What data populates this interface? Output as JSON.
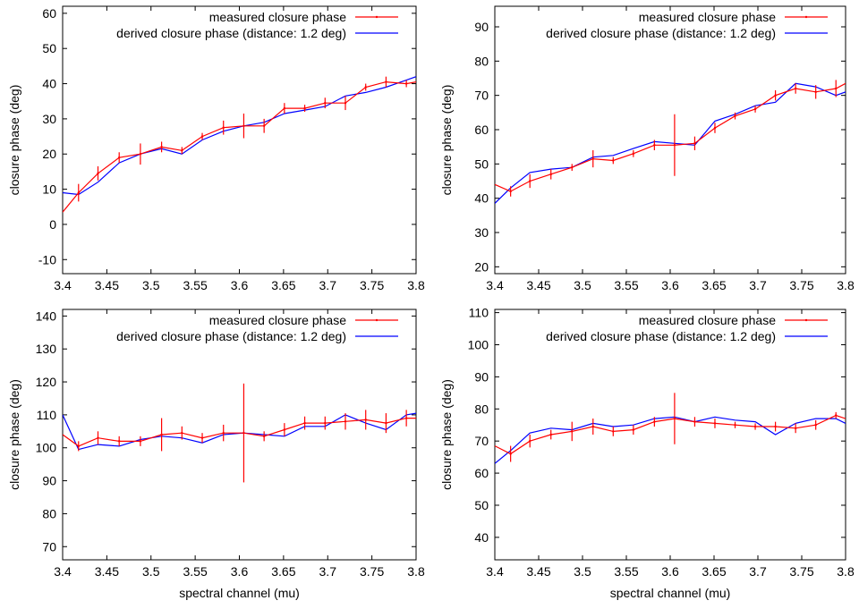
{
  "colors": {
    "measured": "#ff0000",
    "derived": "#0000ff",
    "frame": "#000000"
  },
  "chart_data": [
    {
      "type": "line",
      "ylabel": "closure phase (deg)",
      "xlabel": "",
      "xlim": [
        3.4,
        3.8
      ],
      "ylim": [
        -14,
        62
      ],
      "xticks": [
        "3.4",
        "3.45",
        "3.5",
        "3.55",
        "3.6",
        "3.65",
        "3.7",
        "3.75",
        "3.8"
      ],
      "yticks": [
        "-10",
        "0",
        "10",
        "20",
        "30",
        "40",
        "50",
        "60"
      ],
      "legend_position": "top-right",
      "series": [
        {
          "name": "measured closure phase",
          "x": [
            3.4,
            3.418,
            3.44,
            3.464,
            3.488,
            3.512,
            3.535,
            3.558,
            3.582,
            3.605,
            3.628,
            3.651,
            3.674,
            3.697,
            3.72,
            3.743,
            3.766,
            3.789,
            3.8
          ],
          "y": [
            3.5,
            9,
            14.5,
            19,
            20,
            22,
            21,
            25,
            27.5,
            28,
            28,
            33,
            33,
            34.5,
            34.5,
            39,
            40.5,
            40,
            40.5
          ],
          "err": [
            0,
            2.5,
            2,
            1.5,
            3,
            1.5,
            1,
            1,
            2,
            3.5,
            2,
            1.5,
            1,
            1.5,
            2,
            1,
            1.5,
            1,
            0
          ]
        },
        {
          "name": "derived closure phase (distance: 1.2 deg)",
          "x": [
            3.4,
            3.418,
            3.44,
            3.464,
            3.488,
            3.512,
            3.535,
            3.558,
            3.582,
            3.605,
            3.628,
            3.651,
            3.674,
            3.697,
            3.72,
            3.743,
            3.766,
            3.789,
            3.8
          ],
          "y": [
            9,
            8.5,
            12,
            17.5,
            20,
            21.5,
            20,
            24,
            26.5,
            28,
            29,
            31.5,
            32.5,
            33.5,
            36.5,
            37.5,
            39,
            41,
            42
          ]
        }
      ]
    },
    {
      "type": "line",
      "ylabel": "closure phase (deg)",
      "xlabel": "",
      "xlim": [
        3.4,
        3.8
      ],
      "ylim": [
        18,
        96
      ],
      "xticks": [
        "3.4",
        "3.45",
        "3.5",
        "3.55",
        "3.6",
        "3.65",
        "3.7",
        "3.75",
        "3.8"
      ],
      "yticks": [
        "20",
        "30",
        "40",
        "50",
        "60",
        "70",
        "80",
        "90"
      ],
      "legend_position": "top-right",
      "series": [
        {
          "name": "measured closure phase",
          "x": [
            3.4,
            3.418,
            3.44,
            3.464,
            3.488,
            3.512,
            3.535,
            3.558,
            3.582,
            3.605,
            3.628,
            3.651,
            3.674,
            3.697,
            3.72,
            3.743,
            3.766,
            3.789,
            3.8
          ],
          "y": [
            44,
            42,
            45,
            47,
            49,
            51.5,
            51,
            53,
            55.5,
            55.5,
            56,
            60.5,
            64,
            66,
            70,
            72,
            71,
            72,
            73.5
          ],
          "err": [
            0,
            1.5,
            2,
            1.5,
            1,
            2.5,
            1,
            1,
            1.5,
            9,
            2,
            1.5,
            1,
            1,
            1.5,
            1.5,
            2,
            2.5,
            0
          ]
        },
        {
          "name": "derived closure phase (distance: 1.2 deg)",
          "x": [
            3.4,
            3.418,
            3.44,
            3.464,
            3.488,
            3.512,
            3.535,
            3.558,
            3.582,
            3.605,
            3.628,
            3.651,
            3.674,
            3.697,
            3.72,
            3.743,
            3.766,
            3.789,
            3.8
          ],
          "y": [
            38.5,
            43,
            47.5,
            48.5,
            49,
            52,
            52.5,
            54.5,
            56.5,
            56,
            55.5,
            62.5,
            64.5,
            67,
            68,
            73.5,
            72.5,
            70,
            71
          ]
        }
      ]
    },
    {
      "type": "line",
      "ylabel": "closure phase (deg)",
      "xlabel": "spectral channel (mu)",
      "xlim": [
        3.4,
        3.8
      ],
      "ylim": [
        66,
        142
      ],
      "xticks": [
        "3.4",
        "3.45",
        "3.5",
        "3.55",
        "3.6",
        "3.65",
        "3.7",
        "3.75",
        "3.8"
      ],
      "yticks": [
        "70",
        "80",
        "90",
        "100",
        "110",
        "120",
        "130",
        "140"
      ],
      "legend_position": "top-right",
      "series": [
        {
          "name": "measured closure phase",
          "x": [
            3.4,
            3.418,
            3.44,
            3.464,
            3.488,
            3.512,
            3.535,
            3.558,
            3.582,
            3.605,
            3.628,
            3.651,
            3.674,
            3.697,
            3.72,
            3.743,
            3.766,
            3.789,
            3.8
          ],
          "y": [
            104,
            100.5,
            103,
            102,
            102,
            104,
            104.5,
            103,
            104.5,
            104.5,
            103.5,
            105.5,
            107.5,
            107.5,
            108,
            108.5,
            107.5,
            109,
            109
          ],
          "err": [
            0,
            1.5,
            2,
            1.5,
            1.5,
            5,
            2,
            1.5,
            2.5,
            15,
            1.5,
            2,
            2,
            2,
            2.5,
            3,
            3,
            2.5,
            0
          ]
        },
        {
          "name": "derived closure phase (distance: 1.2 deg)",
          "x": [
            3.4,
            3.418,
            3.44,
            3.464,
            3.488,
            3.512,
            3.535,
            3.558,
            3.582,
            3.605,
            3.628,
            3.651,
            3.674,
            3.697,
            3.72,
            3.743,
            3.766,
            3.789,
            3.8
          ],
          "y": [
            110,
            99.5,
            101,
            100.5,
            102.5,
            103.5,
            103,
            101.5,
            104,
            104.5,
            104,
            103.5,
            106.5,
            106.5,
            110,
            107.5,
            105.5,
            110,
            110.5
          ]
        }
      ]
    },
    {
      "type": "line",
      "ylabel": "closure phase (deg)",
      "xlabel": "spectral channel (mu)",
      "xlim": [
        3.4,
        3.8
      ],
      "ylim": [
        33,
        111
      ],
      "xticks": [
        "3.4",
        "3.45",
        "3.5",
        "3.55",
        "3.6",
        "3.65",
        "3.7",
        "3.75",
        "3.8"
      ],
      "yticks": [
        "40",
        "50",
        "60",
        "70",
        "80",
        "90",
        "100",
        "110"
      ],
      "legend_position": "top-right",
      "series": [
        {
          "name": "measured closure phase",
          "x": [
            3.4,
            3.418,
            3.44,
            3.464,
            3.488,
            3.512,
            3.535,
            3.558,
            3.582,
            3.605,
            3.628,
            3.651,
            3.674,
            3.697,
            3.72,
            3.743,
            3.766,
            3.789,
            3.8
          ],
          "y": [
            68.5,
            66,
            70,
            72,
            73,
            74.5,
            73,
            73.5,
            76,
            77,
            76,
            75.5,
            75,
            74.5,
            74.5,
            74,
            75,
            78,
            77
          ],
          "err": [
            0,
            2.5,
            2,
            1.5,
            3,
            2.5,
            1.5,
            1.5,
            1.5,
            8,
            1.5,
            1.5,
            1,
            1,
            1.5,
            1.5,
            1.5,
            1,
            0
          ]
        },
        {
          "name": "derived closure phase (distance: 1.2 deg)",
          "x": [
            3.4,
            3.418,
            3.44,
            3.464,
            3.488,
            3.512,
            3.535,
            3.558,
            3.582,
            3.605,
            3.628,
            3.651,
            3.674,
            3.697,
            3.72,
            3.743,
            3.766,
            3.789,
            3.8
          ],
          "y": [
            63,
            67,
            72.5,
            74,
            73.5,
            75.5,
            74.5,
            75,
            77,
            77.5,
            76,
            77.5,
            76.5,
            76,
            72,
            75.5,
            77,
            77,
            75.5
          ]
        }
      ]
    }
  ]
}
